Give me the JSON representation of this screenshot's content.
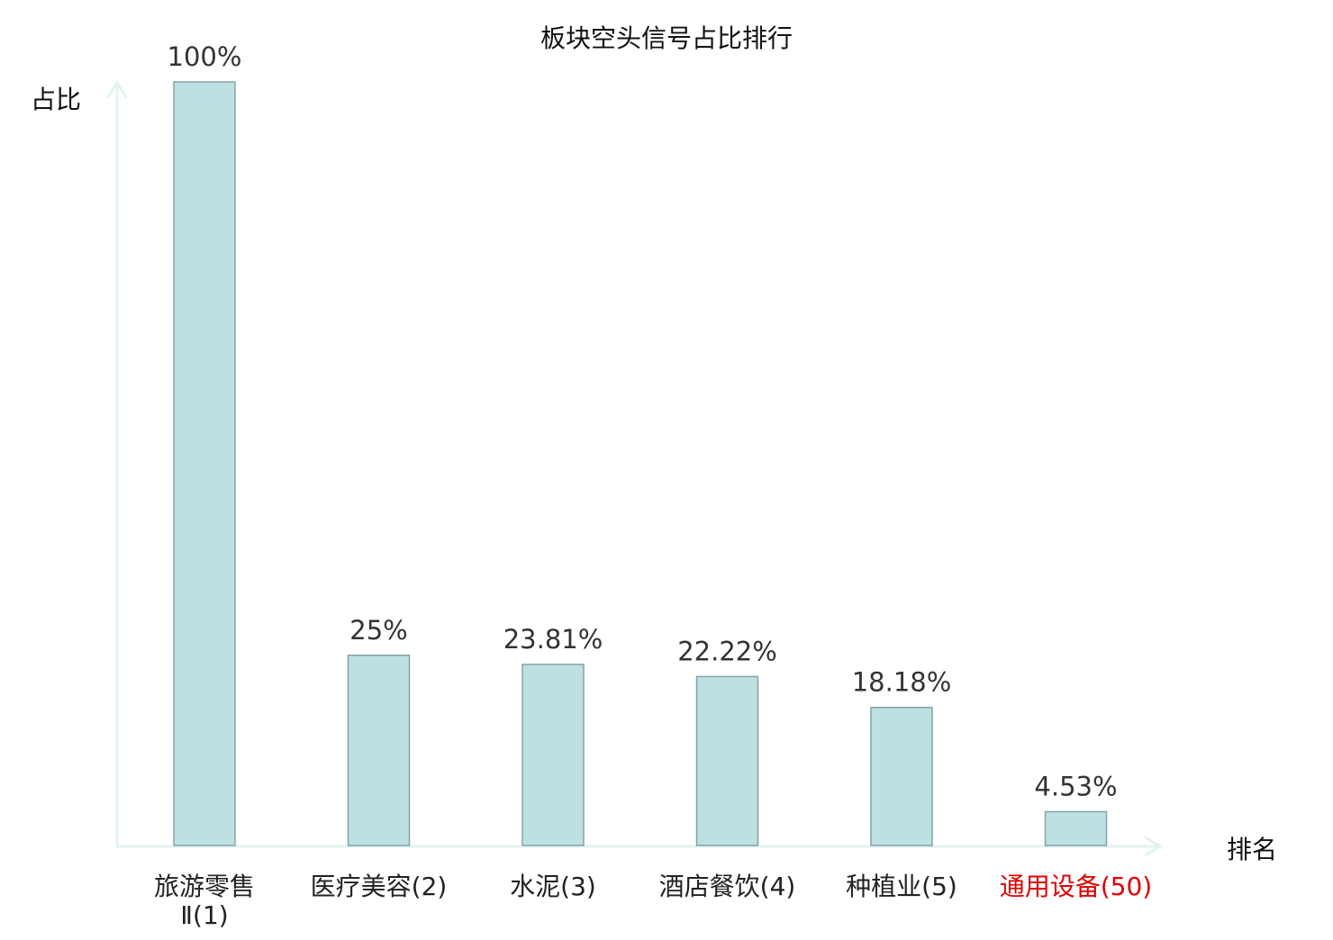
{
  "chart_data": {
    "type": "bar",
    "title": "板块空头信号占比排行",
    "ylabel": "占比",
    "xlabel": "排名",
    "categories": [
      {
        "name": "旅游零售Ⅱ",
        "rank": "(1)",
        "line1": "旅游零售",
        "line2": "Ⅱ(1)"
      },
      {
        "name": "医疗美容",
        "rank": "(2)",
        "line1": "医疗美容(2)",
        "line2": ""
      },
      {
        "name": "水泥",
        "rank": "(3)",
        "line1": "水泥(3)",
        "line2": ""
      },
      {
        "name": "酒店餐饮",
        "rank": "(4)",
        "line1": "酒店餐饮(4)",
        "line2": ""
      },
      {
        "name": "种植业",
        "rank": "(5)",
        "line1": "种植业(5)",
        "line2": ""
      },
      {
        "name": "通用设备",
        "rank": "(50)",
        "line1": "通用设备(50)",
        "line2": ""
      }
    ],
    "values": [
      100,
      25,
      23.81,
      22.22,
      18.18,
      4.53
    ],
    "value_labels": [
      "100%",
      "25%",
      "23.81%",
      "22.22%",
      "18.18%",
      "4.53%"
    ],
    "highlight_index": 5,
    "ylim": [
      0,
      100
    ],
    "grid": false,
    "colors": {
      "bar_fill": "#bde0e3",
      "bar_stroke": "#86a3a8",
      "axis": "#e1f3f1",
      "text": "#222222",
      "value_text": "#333333",
      "highlight": "#e00000"
    }
  }
}
